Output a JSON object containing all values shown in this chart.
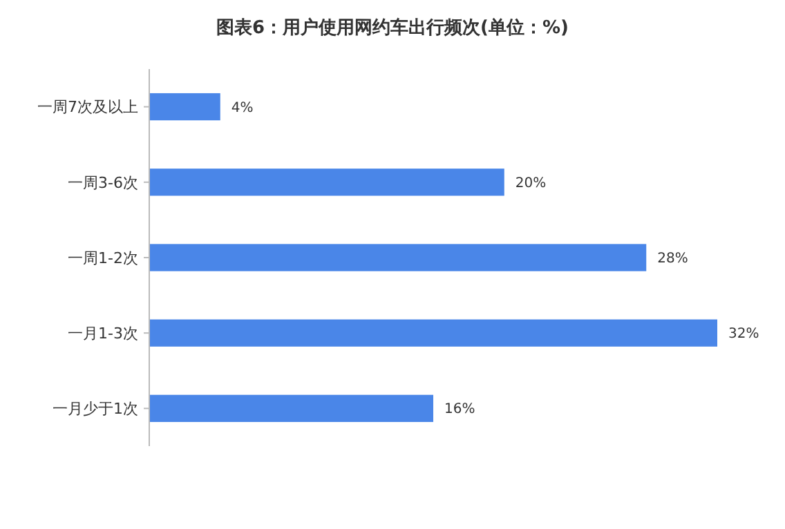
{
  "chart_data": {
    "type": "bar",
    "orientation": "horizontal",
    "title": "图表6：用户使用网约车出行频次(单位：%)",
    "categories": [
      "一周7次及以上",
      "一周3-6次",
      "一周1-2次",
      "一月1-3次",
      "一月少于1次"
    ],
    "values": [
      4,
      20,
      28,
      32,
      16
    ],
    "value_labels": [
      "4%",
      "20%",
      "28%",
      "32%",
      "16%"
    ],
    "color": "#4a86e8",
    "grid": false
  }
}
